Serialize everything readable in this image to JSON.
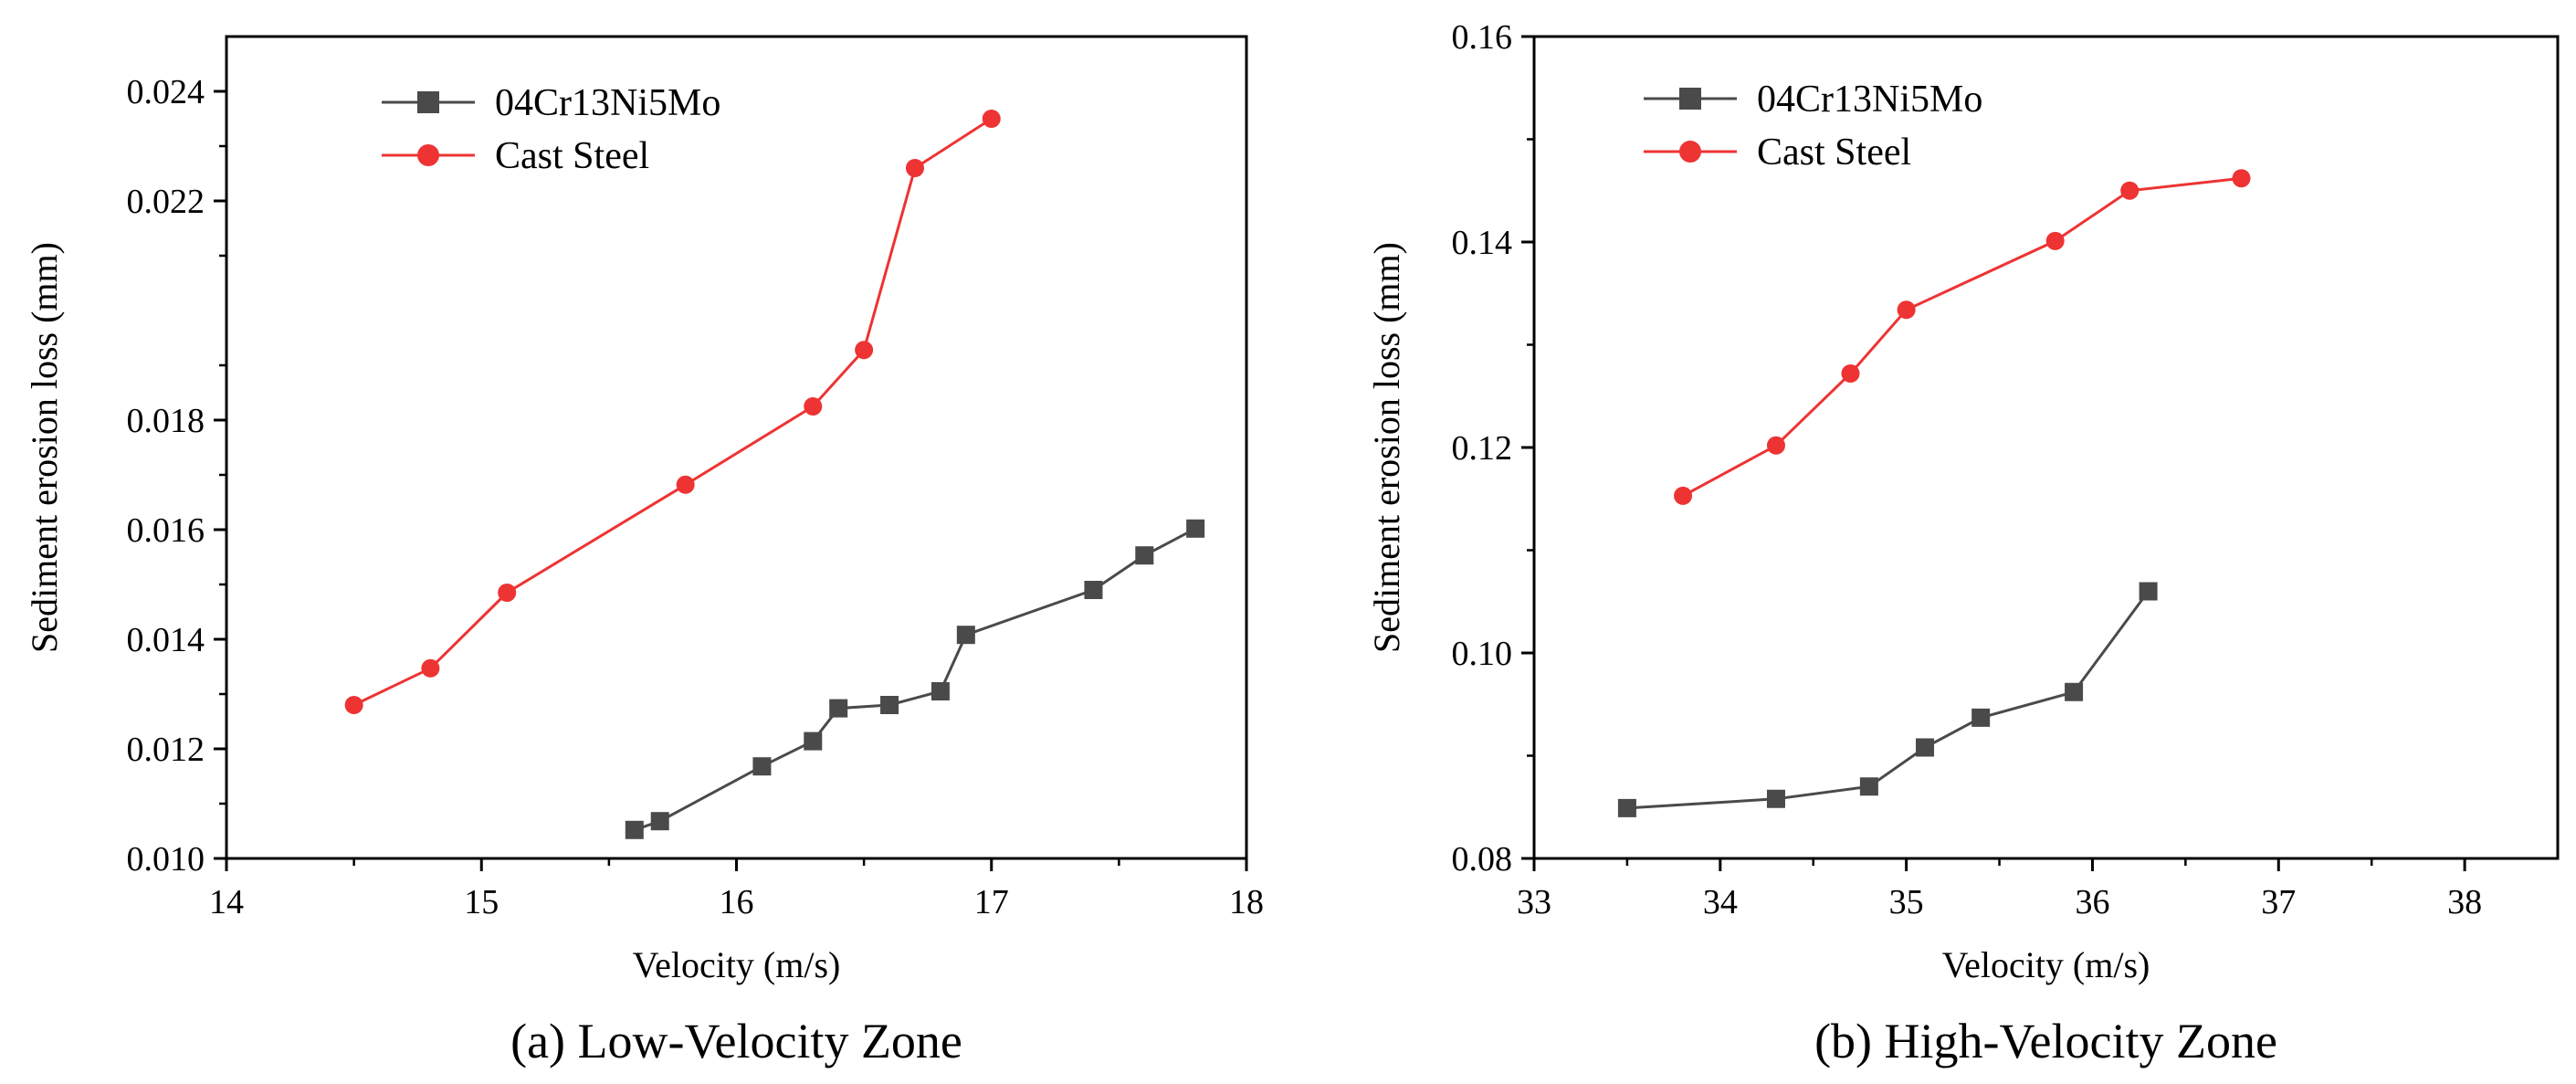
{
  "chart_data": [
    {
      "type": "line",
      "caption": "(a) Low-Velocity Zone",
      "xlabel": "Velocity (m/s)",
      "ylabel": "Sediment erosion loss (mm)",
      "xlim": [
        14,
        18
      ],
      "ylim": [
        0.01,
        0.025
      ],
      "xticks": [
        14,
        15,
        16,
        17,
        18
      ],
      "xtick_labels": [
        "14",
        "15",
        "16",
        "17",
        "18"
      ],
      "yticks": [
        0.01,
        0.012,
        0.014,
        0.016,
        0.018,
        0.022,
        0.024
      ],
      "ytick_labels": [
        "0.010",
        "0.012",
        "0.014",
        "0.016",
        "0.018",
        "0.022",
        "0.024"
      ],
      "legend_position": "top-left",
      "grid": false,
      "series": [
        {
          "name": "04Cr13Ni5Mo",
          "color": "#4a4a4a",
          "marker": "square",
          "x": [
            15.6,
            15.7,
            16.1,
            16.3,
            16.4,
            16.6,
            16.8,
            16.9,
            17.4,
            17.6,
            17.8
          ],
          "y": [
            0.01052,
            0.01068,
            0.01168,
            0.01214,
            0.01274,
            0.0128,
            0.01305,
            0.01408,
            0.0149,
            0.01553,
            0.01602
          ]
        },
        {
          "name": "Cast Steel",
          "color": "#ee3333",
          "marker": "circle",
          "x": [
            14.5,
            14.8,
            15.1,
            15.8,
            16.3,
            16.5,
            16.7,
            17.0
          ],
          "y": [
            0.0128,
            0.01347,
            0.01485,
            0.01682,
            0.01825,
            0.01928,
            0.0226,
            0.0235
          ]
        }
      ]
    },
    {
      "type": "line",
      "caption": "(b) High-Velocity Zone",
      "xlabel": "Velocity (m/s)",
      "ylabel": "Sediment erosion loss (mm)",
      "xlim": [
        33,
        38.5
      ],
      "ylim": [
        0.08,
        0.16
      ],
      "xticks": [
        33,
        34,
        35,
        36,
        37,
        38
      ],
      "xtick_labels": [
        "33",
        "34",
        "35",
        "36",
        "37",
        "38"
      ],
      "yticks": [
        0.08,
        0.1,
        0.12,
        0.14,
        0.16
      ],
      "ytick_labels": [
        "0.08",
        "0.10",
        "0.12",
        "0.14",
        "0.16"
      ],
      "legend_position": "top-left",
      "grid": false,
      "series": [
        {
          "name": "04Cr13Ni5Mo",
          "color": "#4a4a4a",
          "marker": "square",
          "x": [
            33.5,
            34.3,
            34.8,
            35.1,
            35.4,
            35.9,
            36.3
          ],
          "y": [
            0.0849,
            0.0858,
            0.087,
            0.0908,
            0.0937,
            0.0962,
            0.106
          ]
        },
        {
          "name": "Cast Steel",
          "color": "#ee3333",
          "marker": "circle",
          "x": [
            33.8,
            34.3,
            34.7,
            35.0,
            35.8,
            36.2,
            36.8
          ],
          "y": [
            0.1153,
            0.1202,
            0.1272,
            0.1334,
            0.1401,
            0.145,
            0.1462
          ]
        }
      ]
    }
  ]
}
